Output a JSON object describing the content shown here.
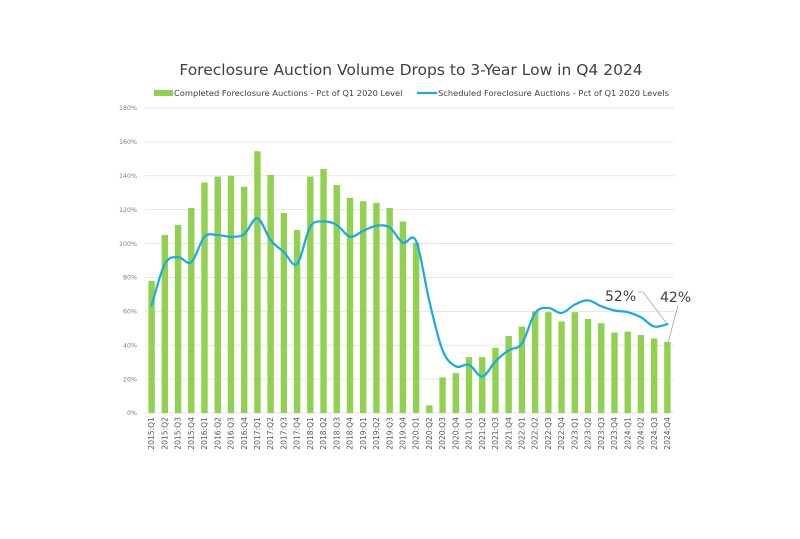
{
  "chart_data": {
    "type": "bar",
    "title": "Foreclosure Auction Volume Drops to 3-Year Low in Q4 2024",
    "xlabel": "",
    "ylabel": "",
    "ylim": [
      0,
      180
    ],
    "yticks": [
      0,
      20,
      40,
      60,
      80,
      100,
      120,
      140,
      160,
      180
    ],
    "ytick_labels": [
      "0%",
      "20%",
      "40%",
      "60%",
      "80%",
      "100%",
      "120%",
      "140%",
      "160%",
      "180%"
    ],
    "grid": true,
    "legend_position": "top",
    "categories": [
      "2015:Q1",
      "2015:Q2",
      "2015:Q3",
      "2015:Q4",
      "2016:Q1",
      "2016:Q2",
      "2016:Q3",
      "2016:Q4",
      "2017:Q1",
      "2017:Q2",
      "2017:Q3",
      "2017:Q4",
      "2018:Q1",
      "2018:Q2",
      "2018:Q3",
      "2018:Q4",
      "2019:Q1",
      "2019:Q2",
      "2019:Q3",
      "2019:Q4",
      "2020:Q1",
      "2020:Q2",
      "2020:Q3",
      "2020:Q4",
      "2021:Q1",
      "2021:Q2",
      "2021:Q3",
      "2021:Q4",
      "2022:Q1",
      "2022:Q2",
      "2022:Q3",
      "2022:Q4",
      "2023:Q1",
      "2023:Q2",
      "2023:Q3",
      "2023:Q4",
      "2024:Q1",
      "2024:Q2",
      "2024:Q3",
      "2024:Q4"
    ],
    "series": [
      {
        "name": "Completed Foreclosure Auctions - Pct of Q1 2020 Level",
        "type": "bar",
        "color": "#92D050",
        "values": [
          78,
          105,
          111,
          121,
          136,
          139.5,
          140,
          133.5,
          154.5,
          140.5,
          118,
          108,
          139.5,
          144,
          134.5,
          127,
          125,
          124,
          121,
          113,
          100.5,
          4.5,
          21,
          23.5,
          33,
          33,
          38.5,
          45.5,
          51,
          60,
          59.5,
          54,
          59.5,
          55.5,
          53,
          47.5,
          48,
          46,
          44,
          42
        ]
      },
      {
        "name": "Scheduled Foreclosure Auctions - Pct of Q1 2020 Levels",
        "type": "line",
        "smooth": true,
        "color": "#17ABE3",
        "values": [
          63.5,
          88,
          92,
          89,
          104,
          105,
          104,
          105.5,
          115,
          102,
          95,
          88,
          110,
          113,
          111,
          104,
          107.5,
          110.5,
          109.5,
          100.5,
          101.5,
          66,
          37,
          27.5,
          28.5,
          21.5,
          30.5,
          37,
          41,
          59,
          62,
          59,
          64,
          66.5,
          63,
          60.5,
          59.5,
          56.5,
          51,
          52.5
        ]
      }
    ],
    "annotations": [
      {
        "text": "52%",
        "target_series": "Scheduled Foreclosure Auctions - Pct of Q1 2020 Levels",
        "target_category": "2024:Q4"
      },
      {
        "text": "42%",
        "target_series": "Completed Foreclosure Auctions - Pct of Q1 2020 Level",
        "target_category": "2024:Q4"
      }
    ]
  }
}
